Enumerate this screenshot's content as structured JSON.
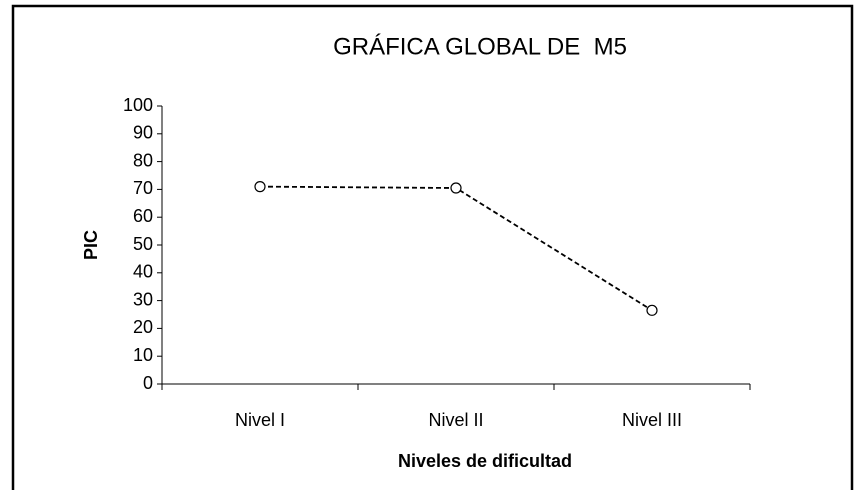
{
  "chart_data": {
    "type": "line",
    "title": "GRÁFICA GLOBAL DE  M5",
    "x_label": "Niveles de dificultad",
    "y_label": "PIC",
    "categories": [
      "Nivel I",
      "Nivel II",
      "Nivel III"
    ],
    "series": [
      {
        "name": "M5",
        "color": "#000000",
        "values": [
          71,
          70.5,
          26.5
        ]
      }
    ],
    "ylim": [
      0,
      100
    ],
    "yticks": [
      0,
      10,
      20,
      30,
      40,
      50,
      60,
      70,
      80,
      90,
      100
    ],
    "grid": false,
    "line_style": "dashed",
    "marker": "circle-open"
  }
}
